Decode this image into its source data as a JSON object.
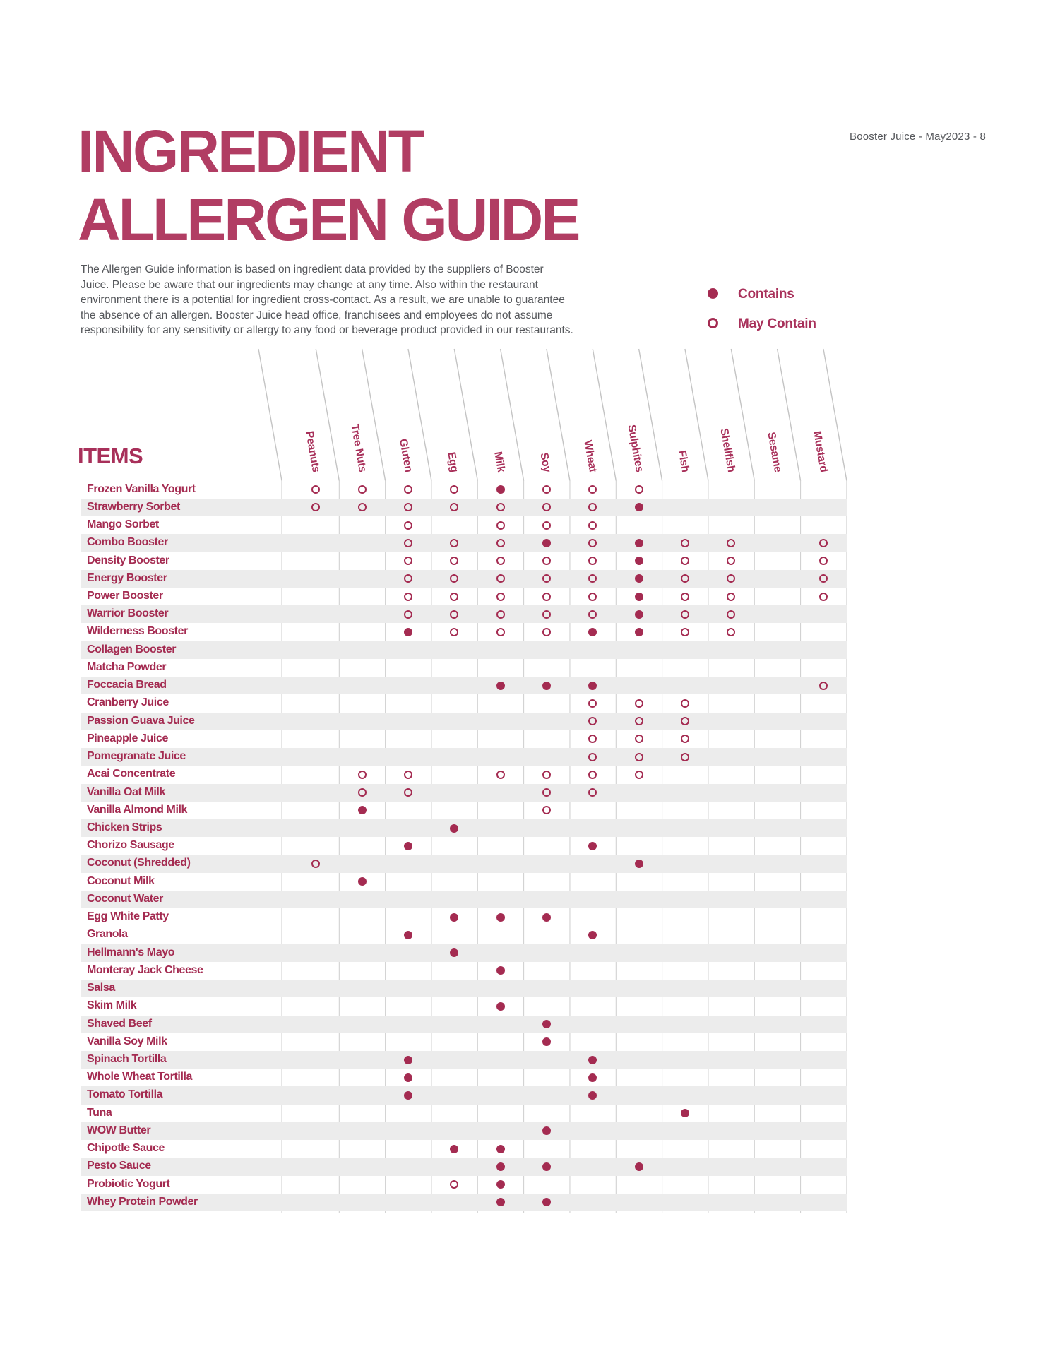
{
  "page_ref": "Booster Juice - May2023 - 8",
  "title": {
    "line1": "INGREDIENT",
    "line2": "ALLERGEN GUIDE"
  },
  "disclaimer": "The Allergen Guide information is based on ingredient data provided by the suppliers of Booster Juice. Please be aware that our ingredients may change at any time.  Also within the restaurant environment there is a potential for ingredient cross-contact.  As a result, we are unable to guarantee the absence of an allergen. Booster Juice head office, franchisees and employees do not assume responsibility for any sensitivity or allergy to any food or beverage product provided in our restaurants.",
  "legend": {
    "contains_label": "Contains",
    "may_contain_label": "May Contain"
  },
  "colors": {
    "maroon": "#a42b51",
    "title_maroon": "#b13d63",
    "body_gray": "#55575b",
    "stripe_gray": "#ececec",
    "grid_line": "#cdcdcd"
  },
  "table": {
    "items_header": "ITEMS",
    "columns": [
      "Peanuts",
      "Tree Nuts",
      "Gluten",
      "Egg",
      "Milk",
      "Soy",
      "Wheat",
      "Sulphites",
      "Fish",
      "Shellfish",
      "Sesame",
      "Mustard"
    ],
    "mark_codes": {
      "C": "contains",
      "M": "may contain",
      "": "none"
    },
    "rows": [
      {
        "name": "Frozen Vanilla Yogurt",
        "shaded": false,
        "marks": [
          "M",
          "M",
          "M",
          "M",
          "C",
          "M",
          "M",
          "M",
          "",
          "",
          "",
          ""
        ]
      },
      {
        "name": "Strawberry Sorbet",
        "shaded": true,
        "marks": [
          "M",
          "M",
          "M",
          "M",
          "M",
          "M",
          "M",
          "C",
          "",
          "",
          "",
          ""
        ]
      },
      {
        "name": "Mango Sorbet",
        "shaded": false,
        "marks": [
          "",
          "",
          "M",
          "",
          "M",
          "M",
          "M",
          "",
          "",
          "",
          "",
          ""
        ]
      },
      {
        "name": "Combo Booster",
        "shaded": true,
        "marks": [
          "",
          "",
          "M",
          "M",
          "M",
          "C",
          "M",
          "C",
          "M",
          "M",
          "",
          "M"
        ]
      },
      {
        "name": "Density Booster",
        "shaded": false,
        "marks": [
          "",
          "",
          "M",
          "M",
          "M",
          "M",
          "M",
          "C",
          "M",
          "M",
          "",
          "M"
        ]
      },
      {
        "name": "Energy Booster",
        "shaded": true,
        "marks": [
          "",
          "",
          "M",
          "M",
          "M",
          "M",
          "M",
          "C",
          "M",
          "M",
          "",
          "M"
        ]
      },
      {
        "name": "Power Booster",
        "shaded": false,
        "marks": [
          "",
          "",
          "M",
          "M",
          "M",
          "M",
          "M",
          "C",
          "M",
          "M",
          "",
          "M"
        ]
      },
      {
        "name": "Warrior Booster",
        "shaded": true,
        "marks": [
          "",
          "",
          "M",
          "M",
          "M",
          "M",
          "M",
          "C",
          "M",
          "M",
          "",
          ""
        ]
      },
      {
        "name": "Wilderness Booster",
        "shaded": false,
        "marks": [
          "",
          "",
          "C",
          "M",
          "M",
          "M",
          "C",
          "C",
          "M",
          "M",
          "",
          ""
        ]
      },
      {
        "name": "Collagen Booster",
        "shaded": true,
        "marks": [
          "",
          "",
          "",
          "",
          "",
          "",
          "",
          "",
          "",
          "",
          "",
          ""
        ]
      },
      {
        "name": "Matcha Powder",
        "shaded": false,
        "marks": [
          "",
          "",
          "",
          "",
          "",
          "",
          "",
          "",
          "",
          "",
          "",
          ""
        ]
      },
      {
        "name": "Foccacia Bread",
        "shaded": true,
        "marks": [
          "",
          "",
          "",
          "",
          "C",
          "C",
          "C",
          "",
          "",
          "",
          "",
          "M"
        ]
      },
      {
        "name": "Cranberry Juice",
        "shaded": false,
        "marks": [
          "",
          "",
          "",
          "",
          "",
          "",
          "M",
          "M",
          "M",
          "",
          "",
          ""
        ]
      },
      {
        "name": "Passion Guava Juice",
        "shaded": true,
        "marks": [
          "",
          "",
          "",
          "",
          "",
          "",
          "M",
          "M",
          "M",
          "",
          "",
          ""
        ]
      },
      {
        "name": "Pineapple Juice",
        "shaded": false,
        "marks": [
          "",
          "",
          "",
          "",
          "",
          "",
          "M",
          "M",
          "M",
          "",
          "",
          ""
        ]
      },
      {
        "name": "Pomegranate Juice",
        "shaded": true,
        "marks": [
          "",
          "",
          "",
          "",
          "",
          "",
          "M",
          "M",
          "M",
          "",
          "",
          ""
        ]
      },
      {
        "name": "Acai Concentrate",
        "shaded": false,
        "marks": [
          "",
          "M",
          "M",
          "",
          "M",
          "M",
          "M",
          "M",
          "",
          "",
          "",
          ""
        ]
      },
      {
        "name": "Vanilla Oat Milk",
        "shaded": true,
        "marks": [
          "",
          "M",
          "M",
          "",
          "",
          "M",
          "M",
          "",
          "",
          "",
          "",
          ""
        ]
      },
      {
        "name": "Vanilla Almond Milk",
        "shaded": false,
        "marks": [
          "",
          "C",
          "",
          "",
          "",
          "M",
          "",
          "",
          "",
          "",
          "",
          ""
        ]
      },
      {
        "name": "Chicken Strips",
        "shaded": true,
        "marks": [
          "",
          "",
          "",
          "C",
          "",
          "",
          "",
          "",
          "",
          "",
          "",
          ""
        ]
      },
      {
        "name": "Chorizo Sausage",
        "shaded": false,
        "marks": [
          "",
          "",
          "C",
          "",
          "",
          "",
          "C",
          "",
          "",
          "",
          "",
          ""
        ]
      },
      {
        "name": "Coconut (Shredded)",
        "shaded": true,
        "marks": [
          "M",
          "",
          "",
          "",
          "",
          "",
          "",
          "C",
          "",
          "",
          "",
          ""
        ]
      },
      {
        "name": "Coconut Milk",
        "shaded": false,
        "marks": [
          "",
          "C",
          "",
          "",
          "",
          "",
          "",
          "",
          "",
          "",
          "",
          ""
        ]
      },
      {
        "name": "Coconut Water",
        "shaded": true,
        "marks": [
          "",
          "",
          "",
          "",
          "",
          "",
          "",
          "",
          "",
          "",
          "",
          ""
        ]
      },
      {
        "name": "Egg White Patty",
        "shaded": false,
        "marks": [
          "",
          "",
          "",
          "C",
          "C",
          "C",
          "",
          "",
          "",
          "",
          "",
          ""
        ]
      },
      {
        "name": "Granola",
        "shaded": false,
        "marks": [
          "",
          "",
          "C",
          "",
          "",
          "",
          "C",
          "",
          "",
          "",
          "",
          ""
        ]
      },
      {
        "name": "Hellmann's Mayo",
        "shaded": true,
        "marks": [
          "",
          "",
          "",
          "C",
          "",
          "",
          "",
          "",
          "",
          "",
          "",
          ""
        ]
      },
      {
        "name": "Monteray Jack Cheese",
        "shaded": false,
        "marks": [
          "",
          "",
          "",
          "",
          "C",
          "",
          "",
          "",
          "",
          "",
          "",
          ""
        ]
      },
      {
        "name": "Salsa",
        "shaded": true,
        "marks": [
          "",
          "",
          "",
          "",
          "",
          "",
          "",
          "",
          "",
          "",
          "",
          ""
        ]
      },
      {
        "name": "Skim Milk",
        "shaded": false,
        "marks": [
          "",
          "",
          "",
          "",
          "C",
          "",
          "",
          "",
          "",
          "",
          "",
          ""
        ]
      },
      {
        "name": "Shaved Beef",
        "shaded": true,
        "marks": [
          "",
          "",
          "",
          "",
          "",
          "C",
          "",
          "",
          "",
          "",
          "",
          ""
        ]
      },
      {
        "name": "Vanilla Soy Milk",
        "shaded": false,
        "marks": [
          "",
          "",
          "",
          "",
          "",
          "C",
          "",
          "",
          "",
          "",
          "",
          ""
        ]
      },
      {
        "name": "Spinach Tortilla",
        "shaded": true,
        "marks": [
          "",
          "",
          "C",
          "",
          "",
          "",
          "C",
          "",
          "",
          "",
          "",
          ""
        ]
      },
      {
        "name": "Whole Wheat Tortilla",
        "shaded": false,
        "marks": [
          "",
          "",
          "C",
          "",
          "",
          "",
          "C",
          "",
          "",
          "",
          "",
          ""
        ]
      },
      {
        "name": "Tomato Tortilla",
        "shaded": true,
        "marks": [
          "",
          "",
          "C",
          "",
          "",
          "",
          "C",
          "",
          "",
          "",
          "",
          ""
        ]
      },
      {
        "name": "Tuna",
        "shaded": false,
        "marks": [
          "",
          "",
          "",
          "",
          "",
          "",
          "",
          "",
          "C",
          "",
          "",
          ""
        ]
      },
      {
        "name": "WOW Butter",
        "shaded": true,
        "marks": [
          "",
          "",
          "",
          "",
          "",
          "C",
          "",
          "",
          "",
          "",
          "",
          ""
        ]
      },
      {
        "name": "Chipotle Sauce",
        "shaded": false,
        "marks": [
          "",
          "",
          "",
          "C",
          "C",
          "",
          "",
          "",
          "",
          "",
          "",
          ""
        ]
      },
      {
        "name": "Pesto Sauce",
        "shaded": true,
        "marks": [
          "",
          "",
          "",
          "",
          "C",
          "C",
          "",
          "C",
          "",
          "",
          "",
          ""
        ]
      },
      {
        "name": "Probiotic Yogurt",
        "shaded": false,
        "marks": [
          "",
          "",
          "",
          "M",
          "C",
          "",
          "",
          "",
          "",
          "",
          "",
          ""
        ]
      },
      {
        "name": "Whey Protein Powder",
        "shaded": true,
        "marks": [
          "",
          "",
          "",
          "",
          "C",
          "C",
          "",
          "",
          "",
          "",
          "",
          ""
        ]
      }
    ]
  }
}
